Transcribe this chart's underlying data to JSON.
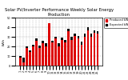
{
  "title": "Solar PV/Inverter Performance Weekly Solar Energy Production",
  "ylabel": "kWh",
  "background_color": "#ffffff",
  "grid_color": "#aaaaaa",
  "weeks": [
    "1",
    "2",
    "3",
    "4",
    "5",
    "6",
    "7",
    "8",
    "9",
    "10",
    "11",
    "12",
    "13",
    "14",
    "15",
    "16",
    "17",
    "18",
    "19",
    "20",
    "21",
    "22",
    "23",
    "24",
    "25"
  ],
  "produced": [
    8,
    3,
    18,
    14,
    20,
    26,
    18,
    23,
    20,
    44,
    24,
    28,
    20,
    27,
    24,
    36,
    27,
    31,
    28,
    22,
    30,
    37,
    30,
    34,
    33
  ],
  "expected": [
    10,
    8,
    20,
    16,
    22,
    28,
    21,
    26,
    23,
    42,
    26,
    30,
    23,
    29,
    27,
    38,
    30,
    33,
    31,
    25,
    33,
    40,
    33,
    37,
    36
  ],
  "produced_color": "#dd0000",
  "expected_color": "#000000",
  "title_fontsize": 3.8,
  "axis_fontsize": 3.0,
  "tick_fontsize": 2.5,
  "ylim": [
    0,
    50
  ],
  "yticks": [
    0,
    10,
    20,
    30,
    40,
    50
  ],
  "legend_labels": [
    "Produced kWh",
    "Expected kWh"
  ],
  "legend_fontsize": 2.5,
  "bar_width": 0.6
}
